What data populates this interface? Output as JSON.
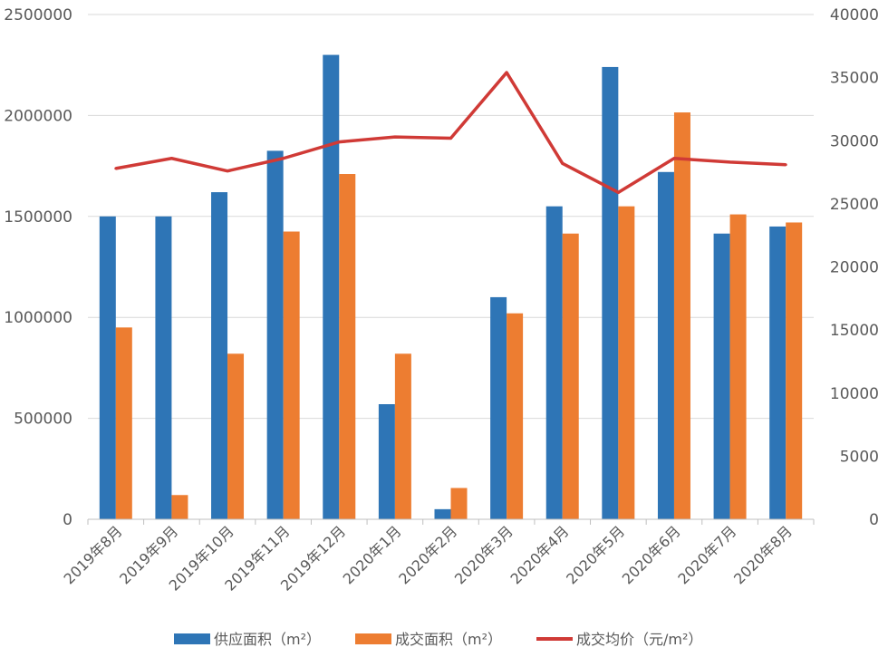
{
  "colors": {
    "supply": "#2E75B6",
    "deal": "#ED7D31",
    "price": "#D03A36",
    "grid": "#D9D9D9",
    "axis": "#BFBFBF",
    "text": "#595959"
  },
  "chart_data": {
    "type": "bar",
    "categories": [
      "2019年8月",
      "2019年9月",
      "2019年10月",
      "2019年11月",
      "2019年12月",
      "2020年1月",
      "2020年2月",
      "2020年3月",
      "2020年4月",
      "2020年5月",
      "2020年6月",
      "2020年7月",
      "2020年8月"
    ],
    "series": [
      {
        "name": "供应面积（m²）",
        "type": "bar",
        "axis": "left",
        "color": "#2E75B6",
        "values": [
          1500000,
          1500000,
          1620000,
          1825000,
          2300000,
          570000,
          50000,
          1100000,
          1550000,
          2240000,
          1720000,
          1415000,
          1450000
        ]
      },
      {
        "name": "成交面积（m²）",
        "type": "bar",
        "axis": "left",
        "color": "#ED7D31",
        "values": [
          950000,
          120000,
          820000,
          1425000,
          1710000,
          820000,
          155000,
          1020000,
          1415000,
          1550000,
          2015000,
          1510000,
          1470000
        ]
      },
      {
        "name": "成交均价（元/m²）",
        "type": "line",
        "axis": "right",
        "color": "#D03A36",
        "values": [
          27800,
          28600,
          27600,
          28600,
          29900,
          30300,
          30200,
          35400,
          28200,
          25900,
          28600,
          28300,
          28100
        ]
      }
    ],
    "ylim_left": [
      0,
      2500000
    ],
    "yticks_left": [
      "0",
      "500000",
      "1000000",
      "1500000",
      "2000000",
      "2500000"
    ],
    "ylim_right": [
      0,
      40000
    ],
    "yticks_right": [
      "0",
      "5000",
      "10000",
      "15000",
      "20000",
      "25000",
      "30000",
      "35000",
      "40000"
    ],
    "grid": true,
    "legend_position": "bottom"
  }
}
